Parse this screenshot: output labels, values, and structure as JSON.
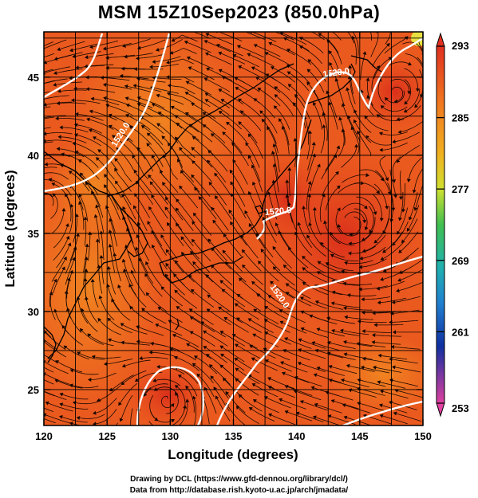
{
  "title": "MSM 15Z10Sep2023 (850.0hPa)",
  "map": {
    "xlabel": "Longitude (degrees)",
    "ylabel": "Latitude  (degrees)",
    "lon_range": [
      120,
      150
    ],
    "lat_range": [
      22.7,
      47.9
    ],
    "lon_ticks": [
      "120",
      "125",
      "130",
      "135",
      "140",
      "145",
      "150"
    ],
    "lat_ticks": [
      "25",
      "30",
      "35",
      "40",
      "45"
    ],
    "grid": true,
    "contours": [
      {
        "label": "1520.0"
      },
      {
        "label": "1520.0"
      },
      {
        "label": "1520.0"
      },
      {
        "label": "1520.0"
      }
    ],
    "colorbar": {
      "ticks": [
        "293",
        "285",
        "277",
        "269",
        "261",
        "253"
      ],
      "min": 253,
      "max": 293,
      "colors": [
        "#e04090",
        "#1040a0",
        "#20a0d0",
        "#30c060",
        "#e0e030",
        "#f09020",
        "#e03020"
      ]
    },
    "colors": {
      "warm": "#ee5522",
      "orange": "#f07820",
      "contour": "#ffffff"
    }
  },
  "credits": {
    "line1": "Drawing by DCL (https://www.gfd-dennou.org/library/dcl/)",
    "line2": "Data from http://database.rish.kyoto-u.ac.jp/arch/jmadata/"
  }
}
